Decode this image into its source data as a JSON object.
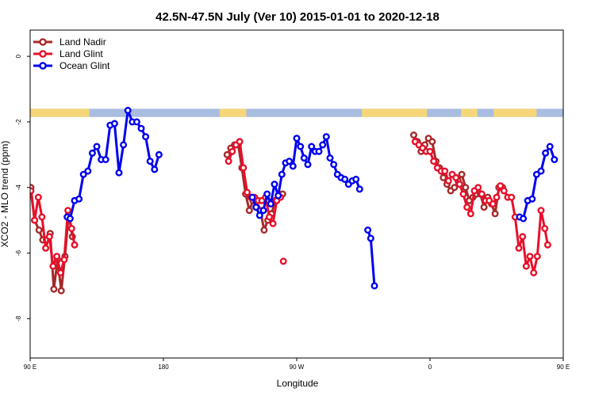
{
  "chart_data": {
    "type": "line",
    "title": "42.5N-47.5N July (Ver 10)   2015-01-01 to 2020-12-18",
    "xlabel": "Longitude",
    "ylabel": "XCO2 - MLO trend (ppm)",
    "xlim": [
      90,
      450
    ],
    "ylim": [
      -9.2,
      0.8
    ],
    "x_ticks": [
      {
        "value": 90,
        "label": "90 E"
      },
      {
        "value": 180,
        "label": "180"
      },
      {
        "value": 270,
        "label": "90 W"
      },
      {
        "value": 360,
        "label": "0"
      },
      {
        "value": 450,
        "label": "90 E"
      },
      {
        "value": 540,
        "label": "180"
      }
    ],
    "y_ticks": [
      {
        "value": 0,
        "label": "0"
      },
      {
        "value": -2,
        "label": "-2"
      },
      {
        "value": -4,
        "label": "-4"
      },
      {
        "value": -6,
        "label": "-6"
      },
      {
        "value": -8,
        "label": "-8"
      }
    ],
    "legend_position": "top-left",
    "grid": false,
    "surface_band": {
      "y_top": -1.6,
      "y_bottom": -1.85,
      "land_color": "#f5d77a",
      "ocean_color": "#a8bde0",
      "land_ranges": [
        [
          90,
          130
        ],
        [
          218,
          236
        ],
        [
          314,
          358
        ],
        [
          381,
          392
        ],
        [
          403,
          432
        ],
        [
          475,
          516
        ]
      ]
    },
    "series": [
      {
        "name": "Land Nadir",
        "color": "#a52a2a",
        "points": [
          [
            90.5,
            -4.0
          ],
          [
            93.0,
            -5.0
          ],
          [
            96.0,
            -5.3
          ],
          [
            98.5,
            -5.6
          ],
          [
            101.0,
            -5.6
          ],
          [
            103.5,
            -5.4
          ],
          [
            106.0,
            -7.1
          ],
          [
            108.5,
            -6.2
          ],
          [
            111.0,
            -7.15
          ],
          [
            113.5,
            -6.1
          ],
          [
            116.0,
            -4.8
          ],
          [
            118.5,
            -5.5
          ],
          null,
          [
            223.0,
            -3.0
          ],
          [
            225.5,
            -2.8
          ],
          [
            228.0,
            -2.7
          ],
          [
            230.5,
            -2.7
          ],
          [
            233.0,
            -3.4
          ],
          [
            235.5,
            -4.2
          ],
          [
            238.0,
            -4.7
          ],
          [
            240.5,
            -4.4
          ],
          [
            243.0,
            -4.6
          ],
          [
            245.5,
            -4.7
          ],
          [
            248.0,
            -5.3
          ],
          [
            250.5,
            -5.0
          ],
          [
            253.0,
            -4.8
          ],
          [
            255.5,
            -4.4
          ],
          [
            258.0,
            -4.2
          ],
          [
            260.5,
            -4.2
          ],
          null,
          [
            349.0,
            -2.4
          ],
          [
            351.5,
            -2.6
          ],
          [
            354.0,
            -2.9
          ],
          [
            356.5,
            -2.7
          ],
          [
            359.0,
            -2.5
          ],
          [
            361.5,
            -2.6
          ],
          [
            364.0,
            -3.2
          ],
          [
            366.5,
            -3.4
          ],
          [
            369.0,
            -3.7
          ],
          [
            371.5,
            -3.9
          ],
          [
            374.0,
            -4.1
          ],
          [
            376.5,
            -4.0
          ],
          [
            379.0,
            -3.8
          ],
          [
            381.5,
            -3.6
          ],
          [
            384.0,
            -4.0
          ],
          [
            386.5,
            -4.4
          ],
          [
            389.0,
            -4.3
          ],
          [
            391.5,
            -4.2
          ],
          [
            394.0,
            -4.2
          ],
          [
            396.5,
            -4.6
          ],
          [
            399.0,
            -4.3
          ],
          [
            401.5,
            -4.5
          ],
          [
            404.0,
            -4.8
          ],
          [
            406.5,
            -4.0
          ],
          [
            409.0,
            -4.0
          ],
          null,
          [
            470.0,
            -5.0
          ],
          [
            472.5,
            -5.3
          ],
          [
            475.0,
            -5.6
          ],
          [
            477.5,
            -5.6
          ],
          [
            480.0,
            -5.4
          ],
          [
            482.5,
            -7.1
          ],
          [
            485.0,
            -6.2
          ],
          [
            487.5,
            -7.15
          ],
          [
            490.0,
            -6.1
          ],
          [
            492.5,
            -4.8
          ],
          [
            495.0,
            -5.5
          ]
        ]
      },
      {
        "name": "Land Nadir outlier",
        "color": "#e8102a",
        "points": [
          [
            261.0,
            -6.25
          ]
        ]
      },
      {
        "name": "Land Glint",
        "color": "#e8102a",
        "points": [
          [
            90.5,
            -4.1
          ],
          [
            93.0,
            -5.0
          ],
          [
            95.5,
            -4.3
          ],
          [
            98.0,
            -4.9
          ],
          [
            100.5,
            -5.85
          ],
          [
            103.0,
            -5.5
          ],
          [
            105.5,
            -6.4
          ],
          [
            108.0,
            -6.1
          ],
          [
            110.5,
            -6.6
          ],
          [
            113.0,
            -6.2
          ],
          [
            115.5,
            -4.7
          ],
          [
            118.0,
            -5.25
          ],
          [
            120.0,
            -5.75
          ],
          null,
          [
            224.0,
            -3.2
          ],
          [
            226.5,
            -2.9
          ],
          [
            229.0,
            -2.7
          ],
          [
            231.5,
            -2.6
          ],
          [
            234.0,
            -3.4
          ],
          [
            236.5,
            -4.15
          ],
          [
            239.0,
            -4.3
          ],
          [
            241.5,
            -4.3
          ],
          [
            244.0,
            -4.4
          ],
          [
            246.5,
            -4.4
          ],
          [
            249.0,
            -4.3
          ],
          [
            251.5,
            -4.9
          ],
          [
            254.0,
            -5.1
          ],
          [
            256.5,
            -4.4
          ],
          [
            259.0,
            -4.3
          ],
          null,
          [
            350.0,
            -2.6
          ],
          [
            352.5,
            -2.7
          ],
          [
            355.0,
            -2.8
          ],
          [
            357.5,
            -2.9
          ],
          [
            360.0,
            -2.9
          ],
          [
            362.5,
            -3.2
          ],
          [
            365.0,
            -3.4
          ],
          [
            367.5,
            -3.5
          ],
          [
            370.0,
            -3.5
          ],
          [
            372.5,
            -3.8
          ],
          [
            375.0,
            -3.6
          ],
          [
            377.5,
            -3.7
          ],
          [
            380.0,
            -3.9
          ],
          [
            382.5,
            -4.2
          ],
          [
            385.0,
            -4.6
          ],
          [
            387.5,
            -4.8
          ],
          [
            390.0,
            -4.1
          ],
          [
            392.5,
            -4.0
          ],
          [
            395.0,
            -4.2
          ],
          [
            397.5,
            -4.4
          ],
          [
            400.0,
            -4.4
          ],
          [
            402.5,
            -4.5
          ],
          [
            405.0,
            -4.3
          ],
          [
            407.5,
            -3.95
          ],
          [
            410.0,
            -4.1
          ],
          [
            412.5,
            -4.3
          ],
          [
            415.0,
            -4.3
          ],
          [
            417.5,
            -4.9
          ],
          [
            420.0,
            -5.85
          ],
          [
            422.5,
            -5.5
          ],
          [
            425.0,
            -6.4
          ],
          [
            427.5,
            -6.1
          ],
          [
            430.0,
            -6.6
          ],
          [
            432.5,
            -6.1
          ],
          [
            435.0,
            -4.7
          ],
          [
            437.5,
            -5.25
          ],
          [
            439.5,
            -5.75
          ]
        ]
      },
      {
        "name": "Ocean Glint",
        "color": "#0000ee",
        "points": [
          [
            115.0,
            -4.9
          ],
          [
            117.0,
            -4.95
          ],
          [
            120.0,
            -4.4
          ],
          [
            123.0,
            -4.35
          ],
          [
            126.0,
            -3.6
          ],
          [
            129.0,
            -3.5
          ],
          [
            132.0,
            -2.95
          ],
          [
            135.0,
            -2.75
          ],
          [
            138.0,
            -3.15
          ],
          [
            141.0,
            -3.15
          ],
          [
            144.0,
            -2.1
          ],
          [
            147.0,
            -2.05
          ],
          [
            150.0,
            -3.55
          ],
          [
            153.0,
            -2.7
          ],
          [
            156.0,
            -1.65
          ],
          [
            159.0,
            -2.0
          ],
          [
            162.0,
            -2.0
          ],
          [
            165.0,
            -2.2
          ],
          [
            168.0,
            -2.45
          ],
          [
            171.0,
            -3.2
          ],
          [
            174.0,
            -3.45
          ],
          [
            177.0,
            -3.0
          ],
          null,
          [
            240.0,
            -4.3
          ],
          [
            242.5,
            -4.6
          ],
          [
            245.0,
            -4.85
          ],
          [
            247.5,
            -4.7
          ],
          [
            250.0,
            -4.2
          ],
          [
            252.5,
            -4.5
          ],
          [
            255.0,
            -3.9
          ],
          [
            257.5,
            -4.25
          ],
          [
            260.0,
            -3.6
          ],
          [
            262.5,
            -3.25
          ],
          [
            265.0,
            -3.2
          ],
          [
            267.5,
            -3.35
          ],
          [
            270.0,
            -2.5
          ],
          [
            272.5,
            -2.75
          ],
          [
            275.0,
            -3.1
          ],
          [
            277.5,
            -3.3
          ],
          [
            280.0,
            -2.75
          ],
          [
            282.5,
            -2.9
          ],
          [
            285.0,
            -2.9
          ],
          [
            287.5,
            -2.7
          ],
          [
            290.0,
            -2.45
          ],
          [
            292.5,
            -3.1
          ],
          [
            295.0,
            -3.3
          ],
          [
            297.5,
            -3.6
          ],
          [
            300.0,
            -3.7
          ],
          [
            302.5,
            -3.75
          ],
          [
            305.0,
            -3.9
          ],
          [
            307.5,
            -3.8
          ],
          [
            310.0,
            -3.75
          ],
          [
            312.5,
            -4.05
          ],
          null,
          [
            318.0,
            -5.3
          ],
          [
            320.0,
            -5.55
          ],
          [
            322.5,
            -7.0
          ],
          null,
          [
            420.5,
            -4.9
          ],
          [
            423.0,
            -4.95
          ],
          [
            426.0,
            -4.4
          ],
          [
            429.0,
            -4.35
          ],
          [
            432.0,
            -3.6
          ],
          [
            435.0,
            -3.5
          ],
          [
            438.0,
            -2.95
          ],
          [
            441.0,
            -2.75
          ],
          [
            444.0,
            -3.15
          ]
        ]
      }
    ],
    "legend": [
      {
        "label": "Land Nadir",
        "color": "#a52a2a"
      },
      {
        "label": "Land Glint",
        "color": "#e8102a"
      },
      {
        "label": "Ocean Glint",
        "color": "#0000ee"
      }
    ]
  }
}
